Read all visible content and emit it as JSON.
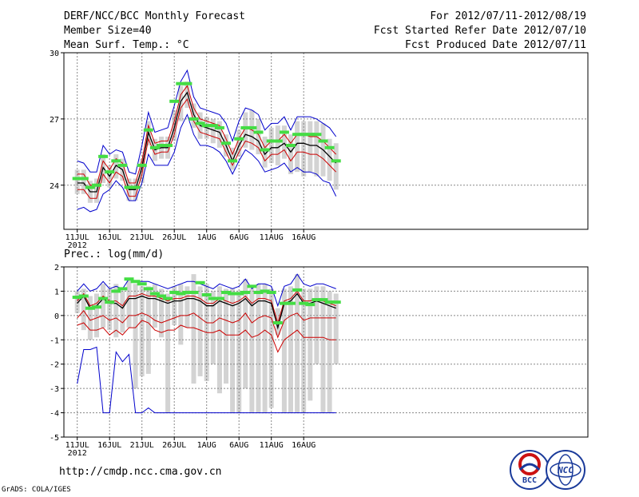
{
  "header": {
    "title_left": "DERF/NCC/BCC Monthly Forecast",
    "member_size": "Member Size=40",
    "variable_top": "Mean Surf. Temp.: °C",
    "fcst_period": "For 2012/07/11-2012/08/19",
    "fcst_started": "Fcst Started Refer Date 2012/07/10",
    "fcst_produced": "Fcst Produced Date 2012/07/11"
  },
  "footer": {
    "url": "http://cmdp.ncc.cma.gov.cn",
    "grads_credit": "GrADS: COLA/IGES",
    "logo_bcc_text": "BCC",
    "logo_ncc_text": "NCC"
  },
  "colors": {
    "bar": "#d3d3d3",
    "mean_line": "#000000",
    "spread_line": "#cc0000",
    "envelope_line": "#0000cc",
    "marker": "#44dd44",
    "grid": "#888888"
  },
  "chart_data": [
    {
      "type": "line",
      "title": "Mean Surf. Temp.: °C",
      "days": 40,
      "ylim": [
        22,
        30
      ],
      "y_ticks": [
        24,
        27,
        30
      ],
      "x_ticks": [
        {
          "day": 0,
          "label": "11JUL",
          "sub": "2012"
        },
        {
          "day": 5,
          "label": "16JUL",
          "sub": ""
        },
        {
          "day": 10,
          "label": "21JUL",
          "sub": ""
        },
        {
          "day": 15,
          "label": "26JUL",
          "sub": ""
        },
        {
          "day": 20,
          "label": "1AUG",
          "sub": ""
        },
        {
          "day": 25,
          "label": "6AUG",
          "sub": ""
        },
        {
          "day": 30,
          "label": "11AUG",
          "sub": ""
        },
        {
          "day": 35,
          "label": "16AUG",
          "sub": ""
        }
      ],
      "series": [
        {
          "name": "mean",
          "values": [
            24.1,
            24.1,
            23.7,
            23.7,
            24.8,
            24.4,
            24.9,
            24.7,
            23.8,
            23.8,
            24.8,
            26.4,
            25.6,
            25.7,
            25.7,
            26.6,
            27.8,
            28.2,
            27.2,
            26.7,
            26.6,
            26.5,
            26.4,
            25.8,
            25.1,
            25.8,
            26.3,
            26.2,
            26.0,
            25.4,
            25.7,
            25.7,
            25.9,
            25.5,
            25.9,
            25.9,
            25.8,
            25.8,
            25.6,
            25.3,
            25.0
          ]
        },
        {
          "name": "upper_spread",
          "values": [
            24.5,
            24.5,
            24.0,
            24.0,
            25.1,
            24.7,
            25.2,
            25.0,
            24.1,
            24.1,
            25.1,
            26.7,
            25.9,
            26.0,
            26.0,
            26.9,
            28.1,
            28.5,
            27.5,
            27.0,
            26.9,
            26.8,
            26.7,
            26.1,
            25.4,
            26.1,
            26.6,
            26.5,
            26.3,
            25.7,
            26.0,
            26.0,
            26.3,
            25.9,
            26.3,
            26.3,
            26.2,
            26.2,
            26.0,
            25.7,
            25.4
          ]
        },
        {
          "name": "lower_spread",
          "values": [
            23.8,
            23.8,
            23.4,
            23.4,
            24.5,
            24.1,
            24.6,
            24.4,
            23.5,
            23.5,
            24.5,
            26.1,
            25.4,
            25.5,
            25.5,
            26.3,
            27.5,
            27.9,
            26.9,
            26.4,
            26.3,
            26.2,
            26.1,
            25.5,
            24.9,
            25.5,
            26.0,
            25.9,
            25.7,
            25.1,
            25.4,
            25.4,
            25.6,
            25.1,
            25.5,
            25.5,
            25.4,
            25.4,
            25.2,
            24.9,
            24.6
          ]
        },
        {
          "name": "max",
          "values": [
            25.1,
            25.0,
            24.6,
            24.6,
            25.8,
            25.4,
            25.6,
            25.5,
            24.6,
            24.5,
            25.8,
            27.3,
            26.4,
            26.5,
            26.6,
            27.6,
            28.7,
            29.2,
            28.0,
            27.5,
            27.4,
            27.3,
            27.2,
            26.8,
            26.0,
            26.9,
            27.5,
            27.4,
            27.2,
            26.5,
            26.8,
            26.8,
            27.1,
            26.5,
            27.1,
            27.1,
            27.1,
            27.0,
            26.8,
            26.6,
            26.2
          ]
        },
        {
          "name": "min",
          "values": [
            22.9,
            23.0,
            22.8,
            22.9,
            23.6,
            23.8,
            24.2,
            23.9,
            23.3,
            23.3,
            24.1,
            25.4,
            24.9,
            24.9,
            24.9,
            25.5,
            26.6,
            27.2,
            26.3,
            25.8,
            25.8,
            25.7,
            25.5,
            25.1,
            24.5,
            25.1,
            25.6,
            25.4,
            25.1,
            24.6,
            24.7,
            24.8,
            25.0,
            24.6,
            24.8,
            24.6,
            24.6,
            24.5,
            24.2,
            24.1,
            23.5
          ]
        },
        {
          "name": "observed_markers",
          "values": [
            24.3,
            24.3,
            23.9,
            24.0,
            25.3,
            24.6,
            25.1,
            24.9,
            23.9,
            23.9,
            24.9,
            26.5,
            25.7,
            25.8,
            25.8,
            27.8,
            28.6,
            28.6,
            27.0,
            26.8,
            26.7,
            26.7,
            26.6,
            25.9,
            25.1,
            26.1,
            26.6,
            26.6,
            26.4,
            25.6,
            26.0,
            26.0,
            26.4,
            25.8,
            26.3,
            26.3,
            26.3,
            26.3,
            26.0,
            25.7,
            25.1
          ]
        },
        {
          "name": "bar_low",
          "values": [
            23.6,
            23.6,
            23.2,
            23.2,
            24.1,
            23.9,
            24.3,
            24.2,
            23.3,
            23.3,
            24.1,
            25.8,
            25.1,
            25.2,
            25.2,
            26.0,
            26.9,
            27.5,
            26.6,
            26.1,
            26.1,
            25.9,
            25.7,
            25.3,
            24.7,
            25.3,
            25.7,
            25.6,
            25.4,
            24.8,
            25.0,
            24.9,
            25.2,
            24.5,
            24.6,
            24.4,
            24.6,
            24.4,
            24.4,
            24.2,
            23.8
          ]
        },
        {
          "name": "bar_high",
          "values": [
            24.7,
            24.7,
            24.2,
            24.3,
            25.4,
            24.9,
            25.4,
            25.2,
            24.3,
            24.3,
            25.2,
            26.9,
            26.1,
            26.2,
            26.2,
            27.4,
            28.5,
            28.7,
            27.7,
            27.3,
            27.1,
            27.0,
            26.9,
            26.3,
            25.7,
            26.5,
            27.3,
            27.4,
            27.0,
            26.2,
            26.6,
            26.7,
            26.7,
            26.3,
            26.9,
            26.9,
            26.9,
            26.9,
            26.8,
            26.1,
            25.9
          ]
        }
      ]
    },
    {
      "type": "line",
      "title": "Prec.: log(mm/d)",
      "days": 40,
      "ylim": [
        -5,
        2
      ],
      "y_ticks": [
        -5,
        -4,
        -3,
        -2,
        -1,
        0,
        1,
        2
      ],
      "x_ticks": [
        {
          "day": 0,
          "label": "11JUL",
          "sub": "2012"
        },
        {
          "day": 5,
          "label": "16JUL",
          "sub": ""
        },
        {
          "day": 10,
          "label": "21JUL",
          "sub": ""
        },
        {
          "day": 15,
          "label": "26JUL",
          "sub": ""
        },
        {
          "day": 20,
          "label": "1AUG",
          "sub": ""
        },
        {
          "day": 25,
          "label": "6AUG",
          "sub": ""
        },
        {
          "day": 30,
          "label": "11AUG",
          "sub": ""
        },
        {
          "day": 35,
          "label": "16AUG",
          "sub": ""
        }
      ],
      "series": [
        {
          "name": "mean",
          "values": [
            0.5,
            0.8,
            0.3,
            0.4,
            0.7,
            0.5,
            0.5,
            0.3,
            0.7,
            0.7,
            0.8,
            0.7,
            0.7,
            0.6,
            0.5,
            0.6,
            0.6,
            0.7,
            0.7,
            0.6,
            0.4,
            0.4,
            0.6,
            0.5,
            0.4,
            0.5,
            0.7,
            0.4,
            0.6,
            0.6,
            0.5,
            -0.5,
            0.5,
            0.6,
            0.9,
            0.5,
            0.5,
            0.6,
            0.5,
            0.4,
            0.3
          ]
        },
        {
          "name": "upper",
          "values": [
            0.6,
            0.9,
            0.4,
            0.5,
            0.8,
            0.6,
            0.6,
            0.4,
            0.8,
            0.8,
            0.9,
            0.8,
            0.8,
            0.7,
            0.6,
            0.7,
            0.7,
            0.8,
            0.8,
            0.7,
            0.5,
            0.5,
            0.7,
            0.6,
            0.5,
            0.6,
            0.8,
            0.5,
            0.7,
            0.7,
            0.6,
            -0.3,
            0.6,
            0.7,
            1.0,
            0.6,
            0.6,
            0.7,
            0.6,
            0.5,
            0.4
          ]
        },
        {
          "name": "lower_spread",
          "values": [
            -0.1,
            0.2,
            -0.2,
            -0.1,
            0.0,
            -0.2,
            -0.1,
            -0.3,
            0.0,
            0.0,
            0.1,
            0.0,
            -0.2,
            -0.3,
            -0.2,
            -0.1,
            0.0,
            0.0,
            0.1,
            -0.1,
            -0.3,
            -0.3,
            -0.1,
            -0.2,
            -0.3,
            -0.2,
            0.1,
            -0.3,
            -0.1,
            0.0,
            -0.1,
            -0.9,
            -0.2,
            0.0,
            0.1,
            -0.2,
            -0.1,
            -0.1,
            -0.1,
            -0.1,
            -0.1
          ]
        },
        {
          "name": "lower_band",
          "values": [
            -0.4,
            -0.3,
            -0.6,
            -0.6,
            -0.5,
            -0.8,
            -0.6,
            -0.8,
            -0.5,
            -0.5,
            -0.2,
            -0.3,
            -0.6,
            -0.7,
            -0.6,
            -0.6,
            -0.4,
            -0.5,
            -0.5,
            -0.6,
            -0.7,
            -0.7,
            -0.6,
            -0.8,
            -0.8,
            -0.8,
            -0.6,
            -0.9,
            -0.8,
            -0.6,
            -0.8,
            -1.5,
            -1.0,
            -0.8,
            -0.6,
            -0.9,
            -0.9,
            -0.9,
            -0.9,
            -1.0,
            -1.0
          ]
        },
        {
          "name": "max",
          "values": [
            1.0,
            1.3,
            1.0,
            1.1,
            1.4,
            1.1,
            1.2,
            1.1,
            1.5,
            1.4,
            1.4,
            1.4,
            1.3,
            1.2,
            1.1,
            1.2,
            1.3,
            1.4,
            1.4,
            1.3,
            1.2,
            1.1,
            1.3,
            1.2,
            1.1,
            1.2,
            1.5,
            1.1,
            1.3,
            1.3,
            1.2,
            0.4,
            1.2,
            1.3,
            1.7,
            1.3,
            1.2,
            1.3,
            1.3,
            1.2,
            1.1
          ]
        },
        {
          "name": "min",
          "values": [
            -2.8,
            -1.4,
            -1.4,
            -1.3,
            -4.0,
            -4.0,
            -1.5,
            -1.9,
            -1.6,
            -4.0,
            -4.0,
            -3.8,
            -4.0,
            -4.0,
            -4.0,
            -4.0,
            -4.0,
            -4.0,
            -4.0,
            -4.0,
            -4.0,
            -4.0,
            -4.0,
            -4.0,
            -4.0,
            -4.0,
            -4.0,
            -4.0,
            -4.0,
            -4.0,
            -4.0,
            -4.0,
            -4.0,
            -4.0,
            -4.0,
            -4.0,
            -4.0,
            -4.0,
            -4.0,
            -4.0,
            -4.0
          ]
        },
        {
          "name": "observed_markers",
          "values": [
            0.75,
            0.8,
            0.3,
            0.35,
            0.7,
            0.55,
            1.0,
            1.1,
            1.5,
            1.4,
            1.3,
            1.1,
            0.9,
            0.8,
            0.7,
            0.95,
            0.9,
            0.95,
            0.95,
            1.35,
            0.85,
            0.7,
            0.7,
            0.95,
            0.9,
            0.9,
            0.95,
            1.2,
            0.95,
            1.0,
            0.95,
            -0.3,
            0.5,
            0.5,
            1.05,
            0.5,
            0.45,
            0.65,
            0.65,
            0.55,
            0.55
          ]
        },
        {
          "name": "bar_low",
          "values": [
            0.1,
            -0.6,
            -1.0,
            -0.9,
            -0.5,
            -0.6,
            -0.9,
            -0.7,
            -0.5,
            -3.0,
            -2.5,
            -2.4,
            -0.5,
            -0.9,
            -4.0,
            -0.4,
            -1.2,
            -0.5,
            -2.8,
            -2.5,
            -2.7,
            -2.0,
            -3.2,
            -2.8,
            -4.0,
            -4.0,
            -3.0,
            -4.0,
            -4.0,
            -4.0,
            -3.8,
            -0.8,
            -4.0,
            -4.0,
            -4.0,
            -4.0,
            -3.5,
            -2.0,
            -4.0,
            -4.0,
            -2.0
          ]
        },
        {
          "name": "bar_high",
          "values": [
            1.0,
            1.1,
            0.8,
            0.9,
            1.3,
            1.1,
            1.3,
            1.0,
            1.5,
            1.3,
            1.2,
            1.2,
            1.3,
            1.1,
            0.9,
            1.2,
            1.3,
            1.2,
            1.7,
            1.2,
            1.3,
            1.0,
            1.2,
            1.1,
            1.1,
            1.0,
            1.5,
            1.1,
            1.3,
            1.3,
            1.1,
            0.3,
            1.1,
            1.2,
            1.7,
            1.1,
            1.1,
            1.2,
            1.2,
            1.0,
            0.9
          ]
        }
      ]
    }
  ]
}
